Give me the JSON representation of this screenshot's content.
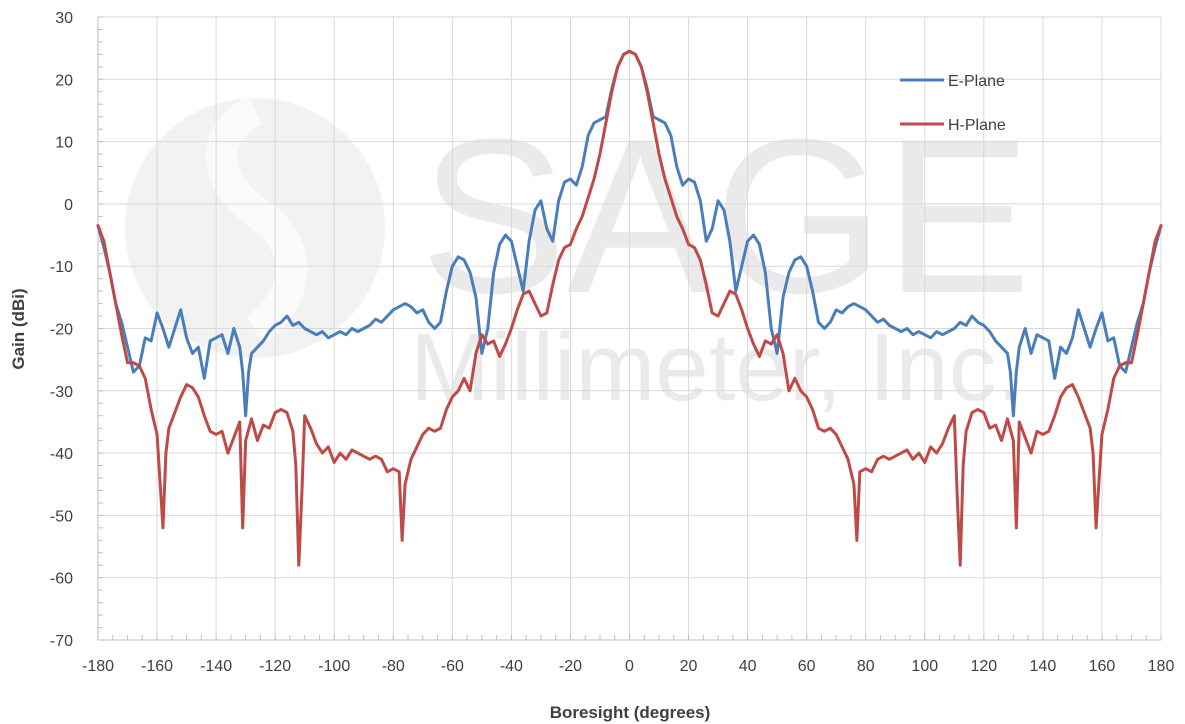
{
  "chart_data": {
    "type": "line",
    "xlabel": "Boresight (degrees)",
    "ylabel": "Gain (dBi)",
    "xlim": [
      -180,
      180
    ],
    "ylim": [
      -70,
      30
    ],
    "xticks": [
      -180,
      -160,
      -140,
      -120,
      -100,
      -80,
      -60,
      -40,
      -20,
      0,
      20,
      40,
      60,
      80,
      100,
      120,
      140,
      160,
      180
    ],
    "yticks": [
      30,
      20,
      10,
      0,
      -10,
      -20,
      -30,
      -40,
      -50,
      -60,
      -70
    ],
    "grid": "vertical and horizontal major gridlines",
    "legend_position": "top-right",
    "watermark": {
      "logo_text": "SAGE",
      "subtitle": "Millimeter, Inc."
    },
    "symmetric_about_zero": true,
    "series": [
      {
        "name": "E-Plane",
        "color": "#4a7ebb",
        "x": [
          0,
          2,
          4,
          6,
          8,
          10,
          12,
          14,
          16,
          18,
          20,
          22,
          24,
          26,
          28,
          30,
          32,
          34,
          36,
          38,
          40,
          42,
          44,
          46,
          48,
          50,
          52,
          54,
          56,
          58,
          60,
          62,
          64,
          66,
          68,
          70,
          72,
          74,
          76,
          78,
          80,
          82,
          84,
          86,
          88,
          90,
          92,
          94,
          96,
          98,
          100,
          102,
          104,
          106,
          108,
          110,
          112,
          114,
          116,
          118,
          120,
          122,
          124,
          126,
          128,
          129,
          130,
          131,
          132,
          134,
          136,
          138,
          140,
          142,
          144,
          146,
          148,
          150,
          152,
          154,
          156,
          158,
          160,
          162,
          164,
          166,
          168,
          170,
          172,
          174,
          176,
          178,
          180
        ],
        "y": [
          24.5,
          24,
          22,
          18.5,
          14,
          13.5,
          13,
          11,
          6,
          3,
          4,
          3.5,
          0.5,
          -6,
          -4,
          0.5,
          -1,
          -6,
          -14,
          -10,
          -6,
          -5,
          -6.5,
          -11,
          -20,
          -24,
          -15,
          -11,
          -9,
          -8.5,
          -10,
          -14,
          -19,
          -20,
          -19,
          -17,
          -17.5,
          -16.5,
          -16,
          -16.5,
          -17,
          -18,
          -19,
          -18.5,
          -19.5,
          -20,
          -20.5,
          -20,
          -21,
          -20.5,
          -21,
          -21.5,
          -20.5,
          -21,
          -20.5,
          -20,
          -19,
          -19.5,
          -18,
          -19,
          -19.5,
          -20.5,
          -22,
          -23,
          -24,
          -27,
          -34,
          -27,
          -23,
          -20,
          -24,
          -21,
          -21.5,
          -22,
          -28,
          -23,
          -24,
          -21.5,
          -17,
          -20,
          -23,
          -20,
          -17.5,
          -22,
          -21.5,
          -26,
          -27,
          -23,
          -19,
          -16,
          -11,
          -7,
          -3.5
        ]
      },
      {
        "name": "H-Plane",
        "color": "#be4b48",
        "x": [
          0,
          2,
          4,
          6,
          8,
          10,
          12,
          14,
          16,
          18,
          20,
          22,
          24,
          26,
          28,
          30,
          32,
          34,
          36,
          38,
          40,
          42,
          44,
          46,
          48,
          50,
          52,
          54,
          56,
          58,
          60,
          62,
          64,
          66,
          68,
          70,
          72,
          74,
          76,
          77,
          78,
          80,
          82,
          84,
          86,
          88,
          90,
          92,
          94,
          96,
          98,
          100,
          102,
          104,
          106,
          108,
          110,
          111,
          112,
          113,
          114,
          116,
          118,
          120,
          122,
          124,
          126,
          128,
          130,
          131,
          132,
          134,
          136,
          138,
          140,
          142,
          144,
          146,
          148,
          150,
          152,
          154,
          156,
          157,
          158,
          160,
          162,
          164,
          166,
          168,
          170,
          172,
          174,
          176,
          178,
          180
        ],
        "y": [
          24.5,
          24,
          22,
          18,
          13,
          8,
          4,
          1,
          -2,
          -4,
          -6.5,
          -7,
          -9,
          -13,
          -17.5,
          -18,
          -16,
          -14,
          -14.5,
          -17,
          -20,
          -22.5,
          -24.5,
          -22,
          -22.5,
          -21,
          -24,
          -30,
          -28,
          -30,
          -31,
          -33,
          -36,
          -36.5,
          -36,
          -37,
          -39,
          -41,
          -45,
          -54,
          -43,
          -42.5,
          -43,
          -41,
          -40.5,
          -41,
          -40.5,
          -40,
          -39.5,
          -41,
          -40,
          -41.5,
          -39,
          -40,
          -38.5,
          -36,
          -34,
          -47,
          -58,
          -42,
          -36.5,
          -33.5,
          -33,
          -33.5,
          -36,
          -35.5,
          -38,
          -34.5,
          -38,
          -52,
          -35,
          -37.5,
          -40,
          -36.5,
          -37,
          -36.5,
          -34,
          -31,
          -29.5,
          -29,
          -31,
          -33.5,
          -36,
          -40,
          -52,
          -37,
          -33,
          -28,
          -26,
          -25.5,
          -25.5,
          -21,
          -16,
          -11,
          -6,
          -3.5
        ]
      }
    ]
  }
}
